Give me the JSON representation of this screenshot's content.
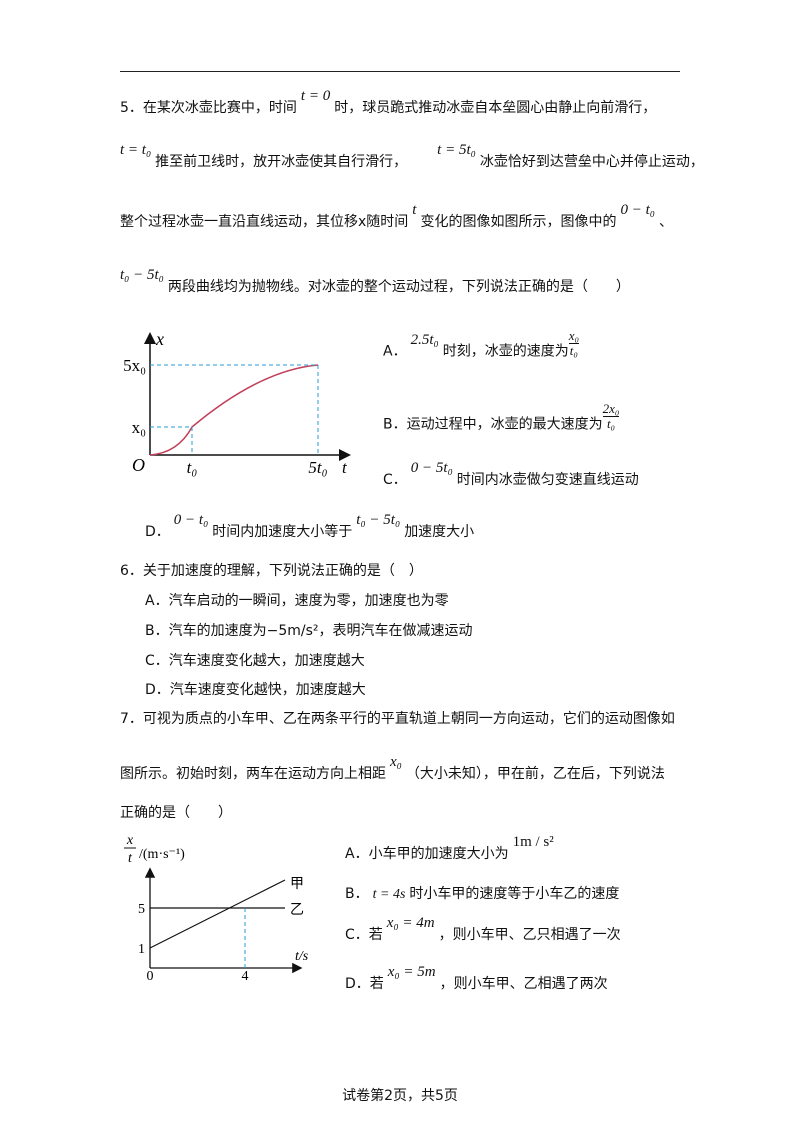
{
  "q5": {
    "lines": [
      [
        "5．在某次冰壶比赛中，时间",
        "t = 0",
        "时，球员跪式推动冰壶自本垒圆心由静止向前滑行，"
      ],
      [
        "t = t₀",
        "推至前卫线时，放开冰壶使其自行滑行，",
        "t = 5t₀",
        "冰壶恰好到达营垒中心并停止运动，"
      ],
      [
        "整个过程冰壶一直沿直线运动，其位移x随时间",
        "t",
        "变化的图像如图所示，图像中的",
        "0 − t₀",
        "、"
      ],
      [
        "t₀ − 5t₀",
        "两段曲线均为抛物线。对冰壶的整个运动过程，下列说法正确的是（　　）"
      ]
    ],
    "figure": {
      "y_label": "x",
      "x_label": "t",
      "origin": "O",
      "y_ticks": [
        "5x₀",
        "x₀"
      ],
      "x_ticks": [
        "t₀",
        "5t₀"
      ]
    },
    "options": [
      [
        "A．",
        "2.5t₀",
        "时刻，冰壶的速度为",
        "x₀",
        "t₀"
      ],
      [
        "B．运动过程中，冰壶的最大速度为",
        "2x₀",
        "t₀"
      ],
      [
        "C．",
        "0 − 5t₀",
        "时间内冰壶做匀变速直线运动"
      ],
      [
        "D．",
        "0 − t₀",
        "时间内加速度大小等于",
        "t₀ − 5t₀",
        "加速度大小"
      ]
    ]
  },
  "q6": {
    "stem": "6．关于加速度的理解，下列说法正确的是（　）",
    "options": [
      "A．汽车启动的一瞬间，速度为零，加速度也为零",
      "B．汽车的加速度为−5m/s²，表明汽车在做减速运动",
      "C．汽车速度变化越大，加速度越大",
      "D．汽车速度变化越快，加速度越大"
    ]
  },
  "q7": {
    "lines": [
      [
        "7．可视为质点的小车甲、乙在两条平行的平直轨道上朝同一方向运动，它们的运动图像如"
      ],
      [
        "图所示。初始时刻，两车在运动方向上相距",
        "x₀",
        "（大小未知），甲在前，乙在后，下列说法"
      ],
      [
        "正确的是（　　）"
      ]
    ],
    "figure": {
      "y_label_num": "x",
      "y_label_den": "t",
      "y_unit": "/(m·s⁻¹)",
      "x_label": "t/s",
      "y_ticks": [
        "5",
        "1"
      ],
      "x_ticks": [
        "0",
        "4"
      ],
      "line_labels": [
        "甲",
        "乙"
      ]
    },
    "options": [
      [
        "A．小车甲的加速度大小为",
        "1m / s²"
      ],
      [
        "B．",
        "t = 4s",
        "时小车甲的速度等于小车乙的速度"
      ],
      [
        "C．若",
        "x₀ = 4m",
        "，则小车甲、乙只相遇了一次"
      ],
      [
        "D．若",
        "x₀ = 5m",
        "，则小车甲、乙相遇了两次"
      ]
    ]
  },
  "footer": "试卷第2页，共5页"
}
